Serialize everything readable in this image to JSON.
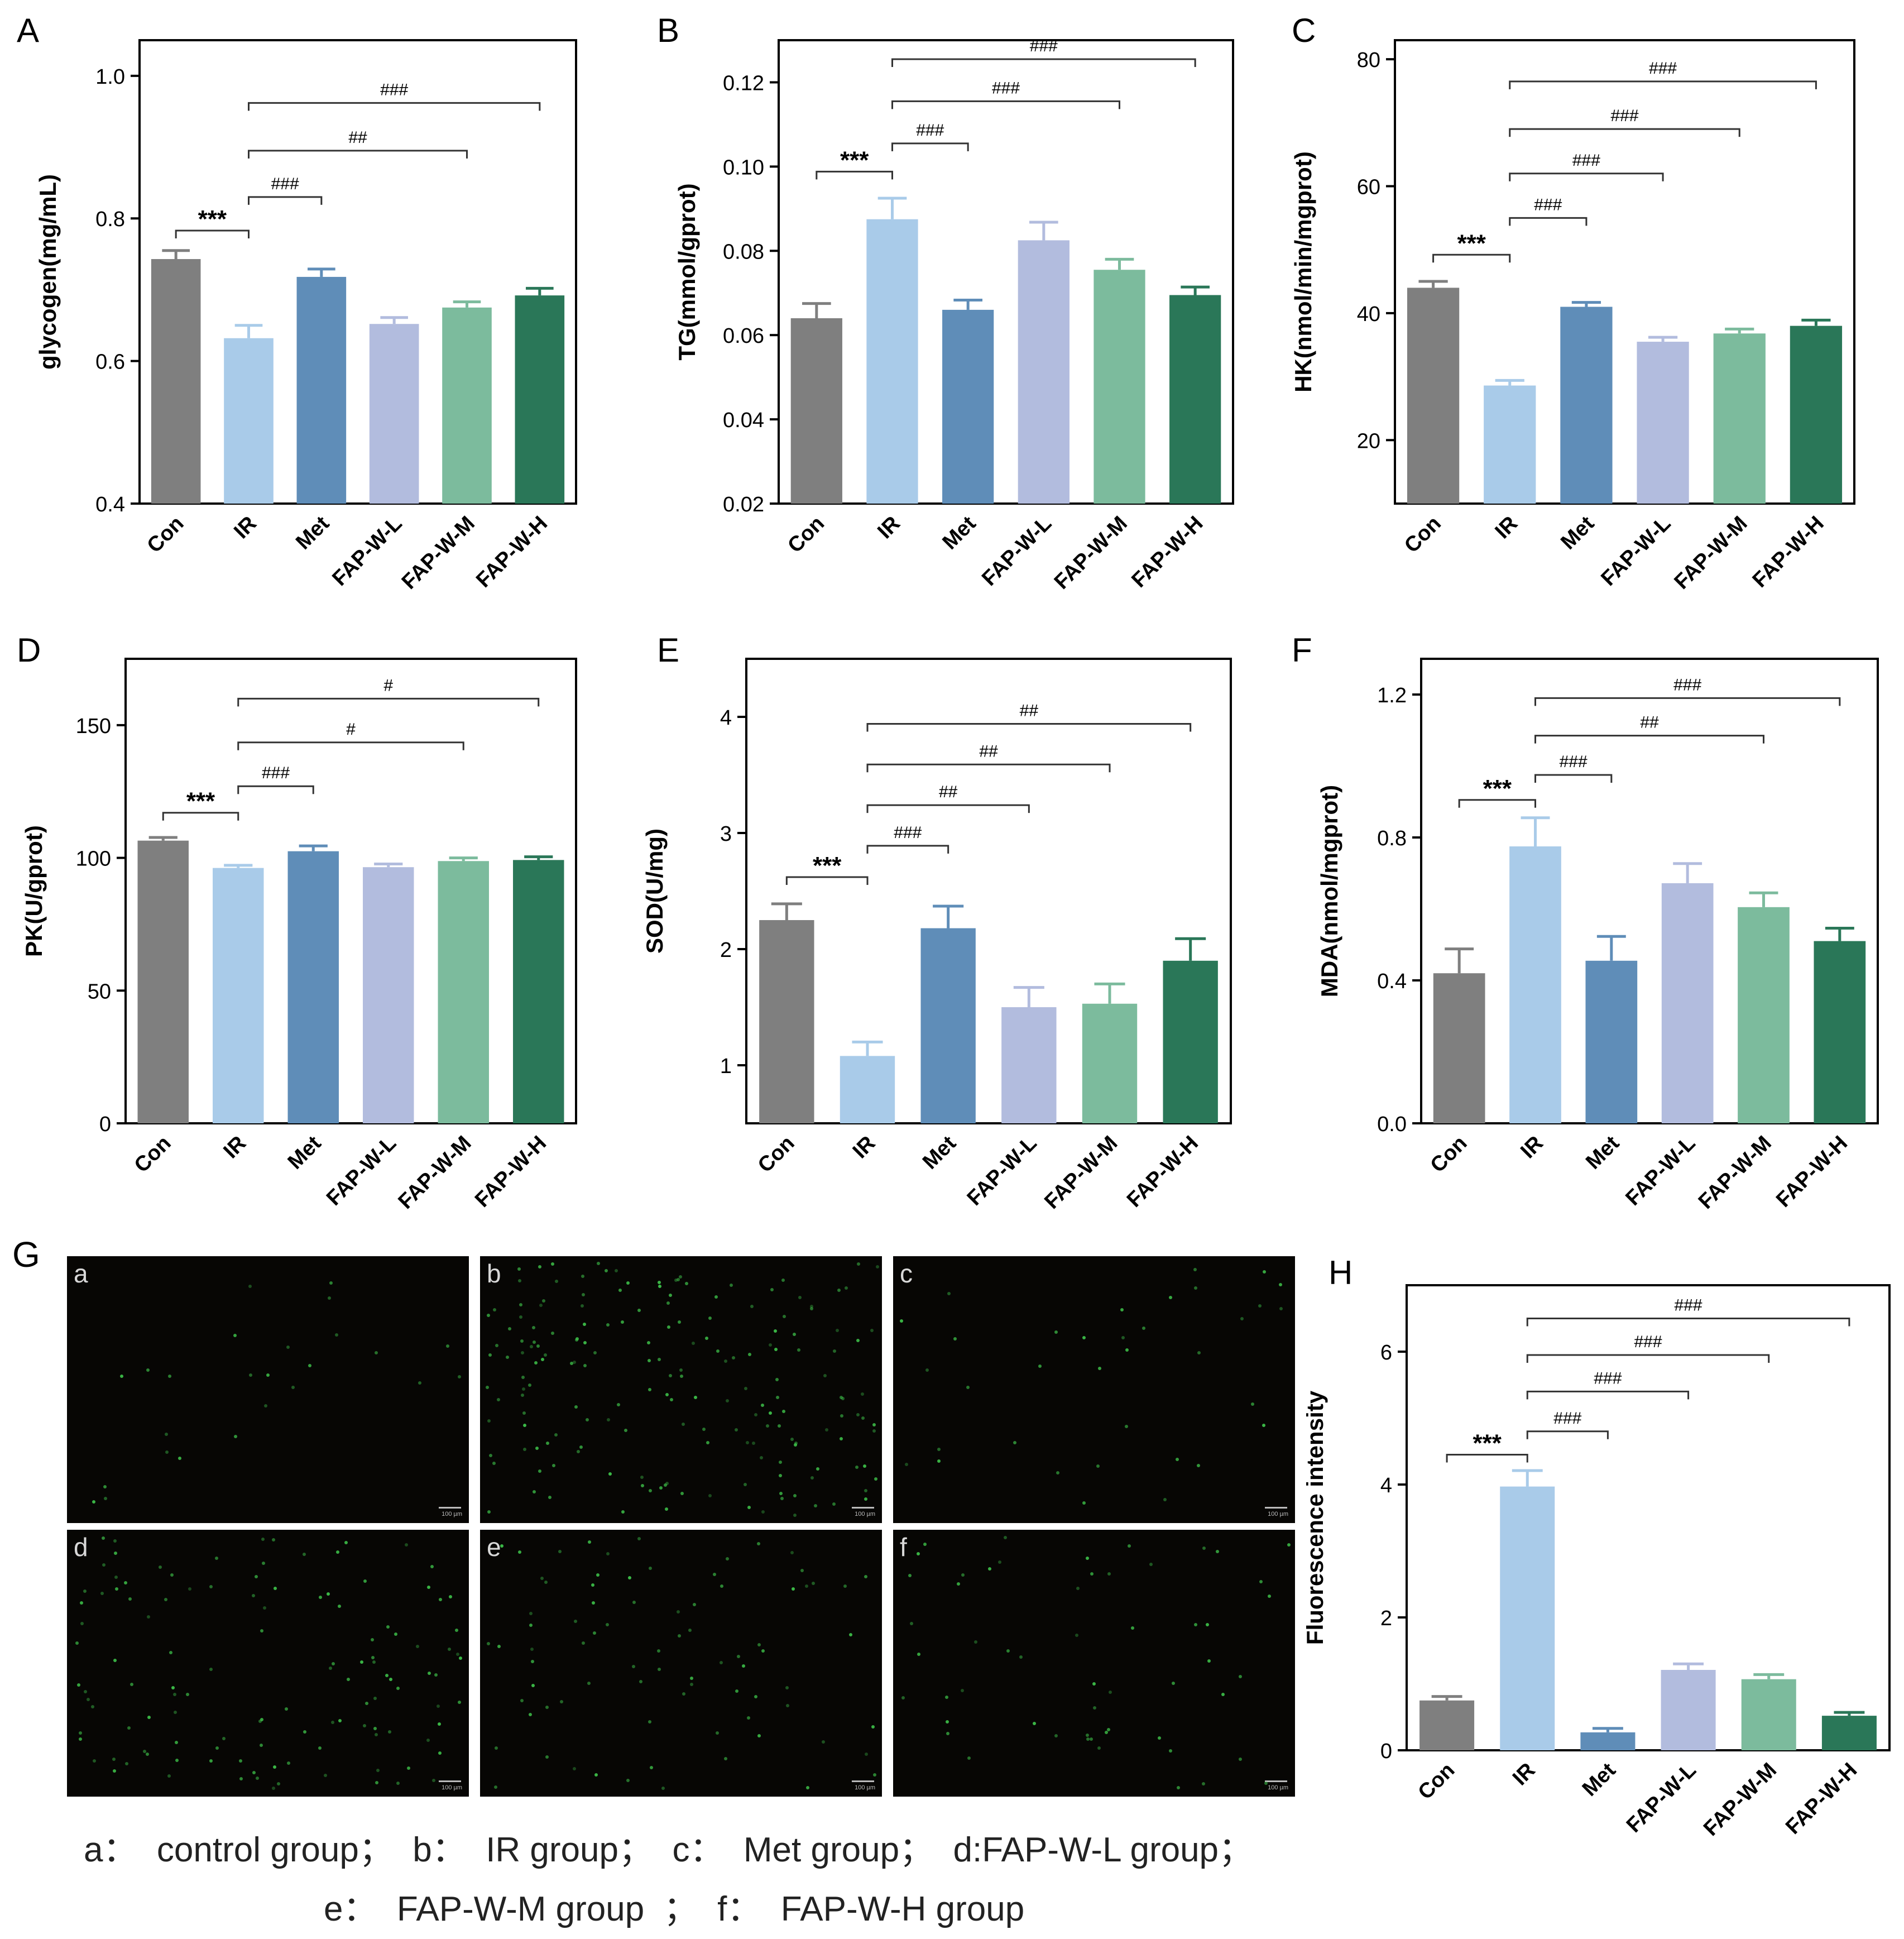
{
  "categories": [
    "Con",
    "IR",
    "Met",
    "FAP-W-L",
    "FAP-W-M",
    "FAP-W-H"
  ],
  "colors": [
    "#7f7f7f",
    "#a9cbe9",
    "#5f8db8",
    "#b2bcde",
    "#7cbb9d",
    "#2a7758"
  ],
  "chart_data": [
    {
      "id": "A",
      "type": "bar",
      "ylabel": "glycogen(mg/mL)",
      "ylim": [
        0.4,
        1.05
      ],
      "yticks": [
        0.4,
        0.6,
        0.8,
        1.0
      ],
      "tick_labels": [
        "0.4",
        "0.6",
        "0.8",
        "1.0"
      ],
      "values": [
        0.743,
        0.632,
        0.718,
        0.652,
        0.675,
        0.692
      ],
      "errors": [
        0.012,
        0.018,
        0.011,
        0.009,
        0.008,
        0.01
      ],
      "annotations": [
        {
          "from": 0,
          "to": 1,
          "label": "***",
          "y": 0.783
        },
        {
          "from": 1,
          "to": 2,
          "label": "###",
          "y": 0.83
        },
        {
          "from": 1,
          "to": 4,
          "label": "##",
          "y": 0.895
        },
        {
          "from": 1,
          "to": 5,
          "label": "###",
          "y": 0.962
        }
      ]
    },
    {
      "id": "B",
      "type": "bar",
      "ylabel": "TG(mmol/gprot)",
      "ylim": [
        0.02,
        0.13
      ],
      "yticks": [
        0.02,
        0.04,
        0.06,
        0.08,
        0.1,
        0.12
      ],
      "tick_labels": [
        "0.02",
        "0.04",
        "0.06",
        "0.08",
        "0.10",
        "0.12"
      ],
      "values": [
        0.064,
        0.0875,
        0.066,
        0.0825,
        0.0755,
        0.0695
      ],
      "errors": [
        0.0035,
        0.005,
        0.0023,
        0.0043,
        0.0025,
        0.0019
      ],
      "annotations": [
        {
          "from": 0,
          "to": 1,
          "label": "***",
          "y": 0.0988
        },
        {
          "from": 1,
          "to": 2,
          "label": "###",
          "y": 0.1055
        },
        {
          "from": 1,
          "to": 4,
          "label": "###",
          "y": 0.1155
        },
        {
          "from": 1,
          "to": 5,
          "label": "###",
          "y": 0.1255
        }
      ]
    },
    {
      "id": "C",
      "type": "bar",
      "ylabel": "HK(nmol/min/mgprot)",
      "ylim": [
        10,
        83
      ],
      "yticks": [
        20,
        40,
        60,
        80
      ],
      "tick_labels": [
        "20",
        "40",
        "60",
        "80"
      ],
      "values": [
        44.0,
        28.6,
        41.0,
        35.5,
        36.8,
        38.0
      ],
      "errors": [
        1.0,
        0.8,
        0.7,
        0.7,
        0.7,
        0.9
      ],
      "annotations": [
        {
          "from": 0,
          "to": 1,
          "label": "***",
          "y": 49.2
        },
        {
          "from": 1,
          "to": 2,
          "label": "###",
          "y": 55.0
        },
        {
          "from": 1,
          "to": 3,
          "label": "###",
          "y": 62.0
        },
        {
          "from": 1,
          "to": 4,
          "label": "###",
          "y": 69.0
        },
        {
          "from": 1,
          "to": 5,
          "label": "###",
          "y": 76.5
        }
      ]
    },
    {
      "id": "D",
      "type": "bar",
      "ylabel": "PK(U/gprot)",
      "ylim": [
        0,
        175
      ],
      "yticks": [
        0,
        50,
        100,
        150
      ],
      "tick_labels": [
        "0",
        "50",
        "100",
        "150"
      ],
      "values": [
        106.5,
        96.2,
        102.5,
        96.5,
        98.8,
        99.2
      ],
      "errors": [
        1.2,
        1.0,
        2.0,
        1.2,
        1.2,
        1.2
      ],
      "annotations": [
        {
          "from": 0,
          "to": 1,
          "label": "***",
          "y": 117.0
        },
        {
          "from": 1,
          "to": 2,
          "label": "###",
          "y": 127.0
        },
        {
          "from": 1,
          "to": 4,
          "label": "#",
          "y": 143.5
        },
        {
          "from": 1,
          "to": 5,
          "label": "#",
          "y": 160.0
        }
      ]
    },
    {
      "id": "E",
      "type": "bar",
      "ylabel": "SOD(U/mg)",
      "ylim": [
        0.5,
        4.5
      ],
      "yticks": [
        1,
        2,
        3,
        4
      ],
      "tick_labels": [
        "1",
        "2",
        "3",
        "4"
      ],
      "values": [
        2.25,
        1.08,
        2.18,
        1.5,
        1.53,
        1.9
      ],
      "errors": [
        0.14,
        0.12,
        0.19,
        0.17,
        0.17,
        0.19
      ],
      "annotations": [
        {
          "from": 0,
          "to": 1,
          "label": "***",
          "y": 2.62
        },
        {
          "from": 1,
          "to": 2,
          "label": "###",
          "y": 2.89
        },
        {
          "from": 1,
          "to": 3,
          "label": "##",
          "y": 3.24
        },
        {
          "from": 1,
          "to": 4,
          "label": "##",
          "y": 3.59
        },
        {
          "from": 1,
          "to": 5,
          "label": "##",
          "y": 3.94
        }
      ]
    },
    {
      "id": "F",
      "type": "bar",
      "ylabel": "MDA(nmol/mgprot)",
      "ylim": [
        0,
        1.3
      ],
      "yticks": [
        0.0,
        0.4,
        0.8,
        1.2
      ],
      "tick_labels": [
        "0.0",
        "0.4",
        "0.8",
        "1.2"
      ],
      "values": [
        0.42,
        0.775,
        0.455,
        0.672,
        0.605,
        0.51
      ],
      "errors": [
        0.068,
        0.08,
        0.068,
        0.055,
        0.04,
        0.036
      ],
      "annotations": [
        {
          "from": 0,
          "to": 1,
          "label": "***",
          "y": 0.905
        },
        {
          "from": 1,
          "to": 2,
          "label": "###",
          "y": 0.975
        },
        {
          "from": 1,
          "to": 4,
          "label": "##",
          "y": 1.085
        },
        {
          "from": 1,
          "to": 5,
          "label": "###",
          "y": 1.19
        }
      ]
    },
    {
      "id": "H",
      "type": "bar",
      "ylabel": "Fluorescence intensity",
      "ylim": [
        0,
        7.0
      ],
      "yticks": [
        0,
        2,
        4,
        6
      ],
      "tick_labels": [
        "0",
        "2",
        "4",
        "6"
      ],
      "values": [
        0.75,
        3.97,
        0.27,
        1.21,
        1.07,
        0.52
      ],
      "errors": [
        0.06,
        0.24,
        0.06,
        0.09,
        0.07,
        0.05
      ],
      "annotations": [
        {
          "from": 0,
          "to": 1,
          "label": "***",
          "y": 4.45
        },
        {
          "from": 1,
          "to": 2,
          "label": "###",
          "y": 4.8
        },
        {
          "from": 1,
          "to": 3,
          "label": "###",
          "y": 5.4
        },
        {
          "from": 1,
          "to": 4,
          "label": "###",
          "y": 5.95
        },
        {
          "from": 1,
          "to": 5,
          "label": "###",
          "y": 6.5
        }
      ]
    }
  ],
  "micrographs": {
    "panel_label": "G",
    "scale_label": "100 µm",
    "labels": [
      "a",
      "b",
      "c",
      "d",
      "e",
      "f"
    ]
  },
  "caption": {
    "line1": "a：  control group；  b：  IR group；  c：  Met group；  d:FAP-W-L group；",
    "line2": "e：  FAP-W-M group  ；  f：  FAP-W-H group"
  }
}
